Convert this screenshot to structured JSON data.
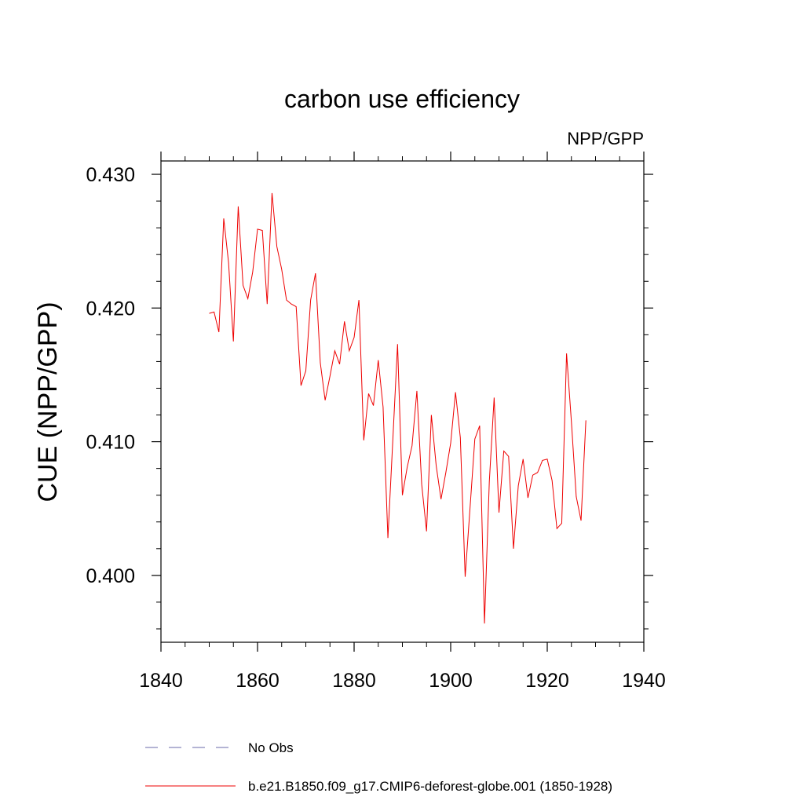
{
  "chart_data": {
    "type": "line",
    "title": "carbon use efficiency",
    "subtitle": "NPP/GPP",
    "xlabel": "",
    "ylabel": "CUE  (NPP/GPP)",
    "xlim": [
      1840,
      1940
    ],
    "ylim": [
      0.395,
      0.431
    ],
    "x_ticks": [
      1840,
      1860,
      1880,
      1900,
      1920,
      1940
    ],
    "y_ticks": [
      0.4,
      0.41,
      0.42,
      0.43
    ],
    "y_tick_labels": [
      "0.400",
      "0.410",
      "0.420",
      "0.430"
    ],
    "x_minor_step": 5,
    "y_minor_step": 0.002,
    "grid": false,
    "legend_position": "bottom",
    "series": [
      {
        "name": "No Obs",
        "style": "dashed",
        "color": "#6a6aa8",
        "x": [],
        "values": []
      },
      {
        "name": "b.e21.B1850.f09_g17.CMIP6-deforest-globe.001 (1850-1928)",
        "style": "solid",
        "color": "#ee0000",
        "x": [
          1850,
          1851,
          1852,
          1853,
          1854,
          1855,
          1856,
          1857,
          1858,
          1859,
          1860,
          1861,
          1862,
          1863,
          1864,
          1865,
          1866,
          1867,
          1868,
          1869,
          1870,
          1871,
          1872,
          1873,
          1874,
          1875,
          1876,
          1877,
          1878,
          1879,
          1880,
          1881,
          1882,
          1883,
          1884,
          1885,
          1886,
          1887,
          1888,
          1889,
          1890,
          1891,
          1892,
          1893,
          1894,
          1895,
          1896,
          1897,
          1898,
          1899,
          1900,
          1901,
          1902,
          1903,
          1904,
          1905,
          1906,
          1907,
          1908,
          1909,
          1910,
          1911,
          1912,
          1913,
          1914,
          1915,
          1916,
          1917,
          1918,
          1919,
          1920,
          1921,
          1922,
          1923,
          1924,
          1925,
          1926,
          1927,
          1928
        ],
        "values": [
          0.4196,
          0.4197,
          0.4182,
          0.4267,
          0.4234,
          0.4175,
          0.4276,
          0.4217,
          0.4207,
          0.4227,
          0.4259,
          0.4258,
          0.4203,
          0.4286,
          0.4246,
          0.4229,
          0.4206,
          0.4203,
          0.4201,
          0.4142,
          0.4153,
          0.4206,
          0.4226,
          0.4159,
          0.4131,
          0.4149,
          0.4168,
          0.4158,
          0.419,
          0.4168,
          0.4178,
          0.4206,
          0.4101,
          0.4136,
          0.4127,
          0.4161,
          0.4126,
          0.4028,
          0.41,
          0.4173,
          0.406,
          0.4081,
          0.4097,
          0.4138,
          0.4068,
          0.4033,
          0.412,
          0.4082,
          0.4057,
          0.4077,
          0.4099,
          0.4137,
          0.4103,
          0.3999,
          0.405,
          0.4102,
          0.4112,
          0.3964,
          0.407,
          0.4133,
          0.4047,
          0.4093,
          0.4089,
          0.402,
          0.4067,
          0.4087,
          0.4058,
          0.4075,
          0.4077,
          0.4086,
          0.4087,
          0.4071,
          0.4035,
          0.4039,
          0.4166,
          0.4115,
          0.4059,
          0.4041,
          0.4116
        ]
      }
    ]
  }
}
